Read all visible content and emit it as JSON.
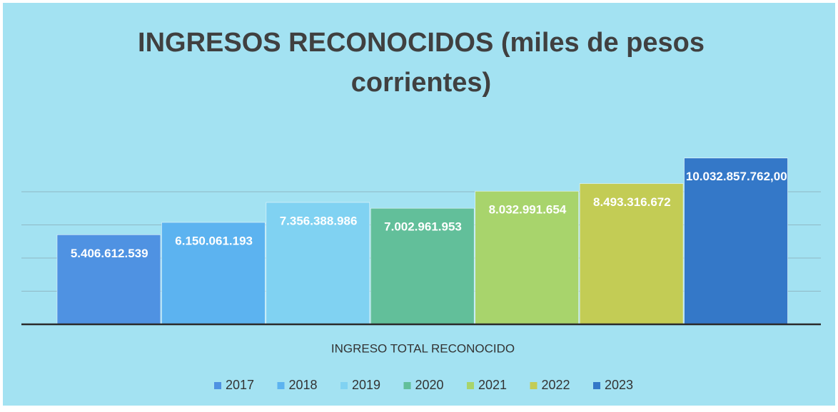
{
  "chart_data": {
    "type": "bar",
    "title": "INGRESOS RECONOCIDOS (miles de pesos",
    "title_line2": "corrientes)",
    "categories": [
      "INGRESO TOTAL RECONOCIDO"
    ],
    "series": [
      {
        "name": "2017",
        "color": "#4f92e2",
        "values": [
          5406612539
        ],
        "value_labels": [
          "5.406.612.539"
        ]
      },
      {
        "name": "2018",
        "color": "#5cb3f0",
        "values": [
          6150061193
        ],
        "value_labels": [
          "6.150.061.193"
        ]
      },
      {
        "name": "2019",
        "color": "#80d2f2",
        "values": [
          7356388986
        ],
        "value_labels": [
          "7.356.388.986"
        ]
      },
      {
        "name": "2020",
        "color": "#62bf9a",
        "values": [
          7002961953
        ],
        "value_labels": [
          "7.002.961.953"
        ]
      },
      {
        "name": "2021",
        "color": "#a8d46c",
        "values": [
          8032991654
        ],
        "value_labels": [
          "8.032.991.654"
        ]
      },
      {
        "name": "2022",
        "color": "#c3cc55",
        "values": [
          8493316672
        ],
        "value_labels": [
          "8.493.316.672"
        ]
      },
      {
        "name": "2023",
        "color": "#3478c8",
        "values": [
          10032857762
        ],
        "value_labels": [
          "10.032.857.762,00"
        ]
      }
    ],
    "ylim": [
      0,
      12000000000
    ],
    "yticks": [
      0,
      2000000000,
      4000000000,
      6000000000,
      8000000000
    ],
    "grid": true,
    "legend": "bottom"
  }
}
